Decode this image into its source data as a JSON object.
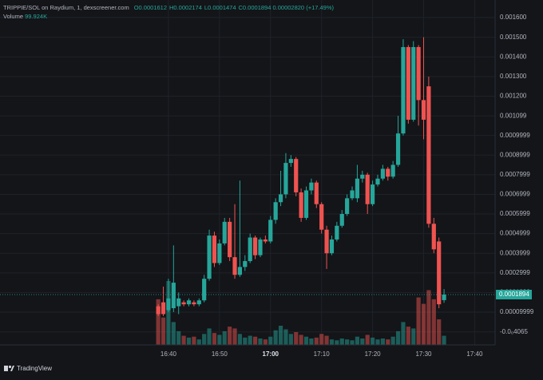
{
  "chart_data": {
    "type": "candlestick",
    "title": "TRIPPIE/SOL on Raydium, 1, dexscreener.com",
    "ohlc_labels": [
      "O0.0001612",
      "H0.0002174",
      "L0.0001474",
      "C0.0001894"
    ],
    "change_label": "0.00002820 (+17.49%)",
    "volume_title": "Volume",
    "volume_label": "99.924K",
    "footer": "TradingView",
    "up_color": "#26a69a",
    "down_color": "#ef5350",
    "grid": true,
    "xlim": [
      "16:07",
      "17:44"
    ],
    "xticks": [
      "16:40",
      "16:50",
      "17:00",
      "17:10",
      "17:20",
      "17:30",
      "17:40"
    ],
    "ylim": [
      -6.67e-05,
      0.001649
    ],
    "yticks": [
      {
        "value": 0.0016,
        "label": "0.001600"
      },
      {
        "value": 0.0015,
        "label": "0.001500"
      },
      {
        "value": 0.0014,
        "label": "0.001400"
      },
      {
        "value": 0.0013,
        "label": "0.001300"
      },
      {
        "value": 0.0012,
        "label": "0.001200"
      },
      0.001099,
      0.0009999,
      0.0008999,
      0.0007999,
      0.0006999,
      0.0005999,
      0.0004999,
      0.0003999,
      0.0002999,
      0.0001999,
      9.999e-05,
      {
        "value": -4.065e-07,
        "label": "-0.0₀4065"
      }
    ],
    "last_price": 0.0001894,
    "x": [
      "16:38",
      "16:39",
      "16:40",
      "16:41",
      "16:42",
      "16:43",
      "16:44",
      "16:45",
      "16:46",
      "16:47",
      "16:48",
      "16:49",
      "16:50",
      "16:51",
      "16:52",
      "16:53",
      "16:54",
      "16:55",
      "16:56",
      "16:57",
      "16:58",
      "16:59",
      "17:00",
      "17:01",
      "17:02",
      "17:03",
      "17:04",
      "17:05",
      "17:06",
      "17:07",
      "17:08",
      "17:09",
      "17:10",
      "17:11",
      "17:12",
      "17:13",
      "17:14",
      "17:15",
      "17:16",
      "17:17",
      "17:18",
      "17:19",
      "17:20",
      "17:21",
      "17:22",
      "17:23",
      "17:24",
      "17:25",
      "17:26",
      "17:27",
      "17:28",
      "17:29",
      "17:30",
      "17:31",
      "17:32",
      "17:33",
      "17:34"
    ],
    "open": [
      0.00013,
      0.00015,
      0.00011,
      0.00012,
      0.00013,
      0.00015,
      0.00014,
      0.00015,
      0.00014,
      0.00016,
      0.00027,
      0.00049,
      0.00035,
      0.00045,
      0.00056,
      0.00038,
      0.00029,
      0.00033,
      0.00036,
      0.00048,
      0.00039,
      0.00047,
      0.00046,
      0.00057,
      0.00066,
      0.0007,
      0.00086,
      0.00088,
      0.00071,
      0.00058,
      0.00072,
      0.00076,
      0.00065,
      0.00052,
      0.0004,
      0.00047,
      0.00054,
      0.0006,
      0.00068,
      0.00068,
      0.00078,
      0.0008,
      0.00065,
      0.00075,
      0.00078,
      0.00083,
      0.00079,
      0.00085,
      0.00101,
      0.00145,
      0.00108,
      0.00145,
      0.00118,
      0.00125,
      0.00055,
      0.00046,
      0.0001612
    ],
    "high": [
      0.00014,
      0.00023,
      0.00027,
      0.00044,
      0.0002,
      0.00016,
      0.00017,
      0.00016,
      0.00017,
      0.00029,
      0.00052,
      0.00051,
      0.00047,
      0.00058,
      0.00058,
      0.00065,
      0.00077,
      0.00039,
      0.0005,
      0.00049,
      0.00048,
      0.00049,
      0.00059,
      0.00068,
      0.00082,
      0.00091,
      0.0009,
      0.00089,
      0.00073,
      0.00074,
      0.00078,
      0.00077,
      0.00066,
      0.00054,
      0.00049,
      0.00056,
      0.00062,
      0.0007,
      0.00074,
      0.00085,
      0.00082,
      0.00081,
      0.00077,
      0.0008,
      0.00085,
      0.00084,
      0.00087,
      0.0011,
      0.00149,
      0.00146,
      0.00148,
      0.00146,
      0.0015,
      0.0013,
      0.00058,
      0.00048,
      0.0002174
    ],
    "low": [
      8e-05,
      8e-05,
      0.0001,
      0.0001,
      9e-05,
      0.00013,
      0.00013,
      0.00013,
      0.00013,
      0.00015,
      0.00026,
      0.00033,
      0.00034,
      0.00044,
      0.00036,
      0.00027,
      0.00028,
      0.00031,
      0.00035,
      0.00037,
      0.00038,
      0.00045,
      0.00045,
      0.00055,
      0.00064,
      0.00068,
      0.00084,
      0.00069,
      0.00056,
      0.00057,
      0.0007,
      0.00063,
      0.0005,
      0.00032,
      0.00039,
      0.00046,
      0.00053,
      0.00059,
      0.00067,
      0.00066,
      0.00076,
      0.0006,
      0.00064,
      0.00074,
      0.00077,
      0.00077,
      0.00078,
      0.00084,
      0.001,
      0.00106,
      0.00107,
      0.00105,
      0.00098,
      0.00053,
      0.0004,
      0.00012,
      0.0001474
    ],
    "close": [
      9e-05,
      9e-05,
      0.00017,
      0.00025,
      0.00017,
      0.00014,
      0.00016,
      0.00014,
      0.00016,
      0.00027,
      0.00049,
      0.00035,
      0.00045,
      0.00056,
      0.00038,
      0.00029,
      0.00033,
      0.00036,
      0.00048,
      0.00039,
      0.00047,
      0.00046,
      0.00057,
      0.00066,
      0.0007,
      0.00086,
      0.00088,
      0.00071,
      0.00058,
      0.00072,
      0.00076,
      0.00065,
      0.00052,
      0.0004,
      0.00047,
      0.00054,
      0.0006,
      0.00068,
      0.00072,
      0.00078,
      0.0008,
      0.00065,
      0.00075,
      0.00078,
      0.00083,
      0.00079,
      0.00085,
      0.00101,
      0.00145,
      0.00108,
      0.00145,
      0.00118,
      0.00108,
      0.00055,
      0.00042,
      0.00014,
      0.0001894
    ],
    "volume": [
      500000,
      300000,
      700000,
      250000,
      150000,
      100000,
      80000,
      90000,
      60000,
      120000,
      180000,
      130000,
      110000,
      150000,
      200000,
      180000,
      120000,
      80000,
      100000,
      90000,
      70000,
      60000,
      90000,
      160000,
      210000,
      170000,
      120000,
      140000,
      110000,
      90000,
      70000,
      80000,
      120000,
      100000,
      60000,
      50000,
      70000,
      60000,
      50000,
      90000,
      70000,
      110000,
      80000,
      60000,
      70000,
      60000,
      90000,
      150000,
      250000,
      200000,
      180000,
      520000,
      450000,
      600000,
      500000,
      280000,
      99924
    ]
  }
}
